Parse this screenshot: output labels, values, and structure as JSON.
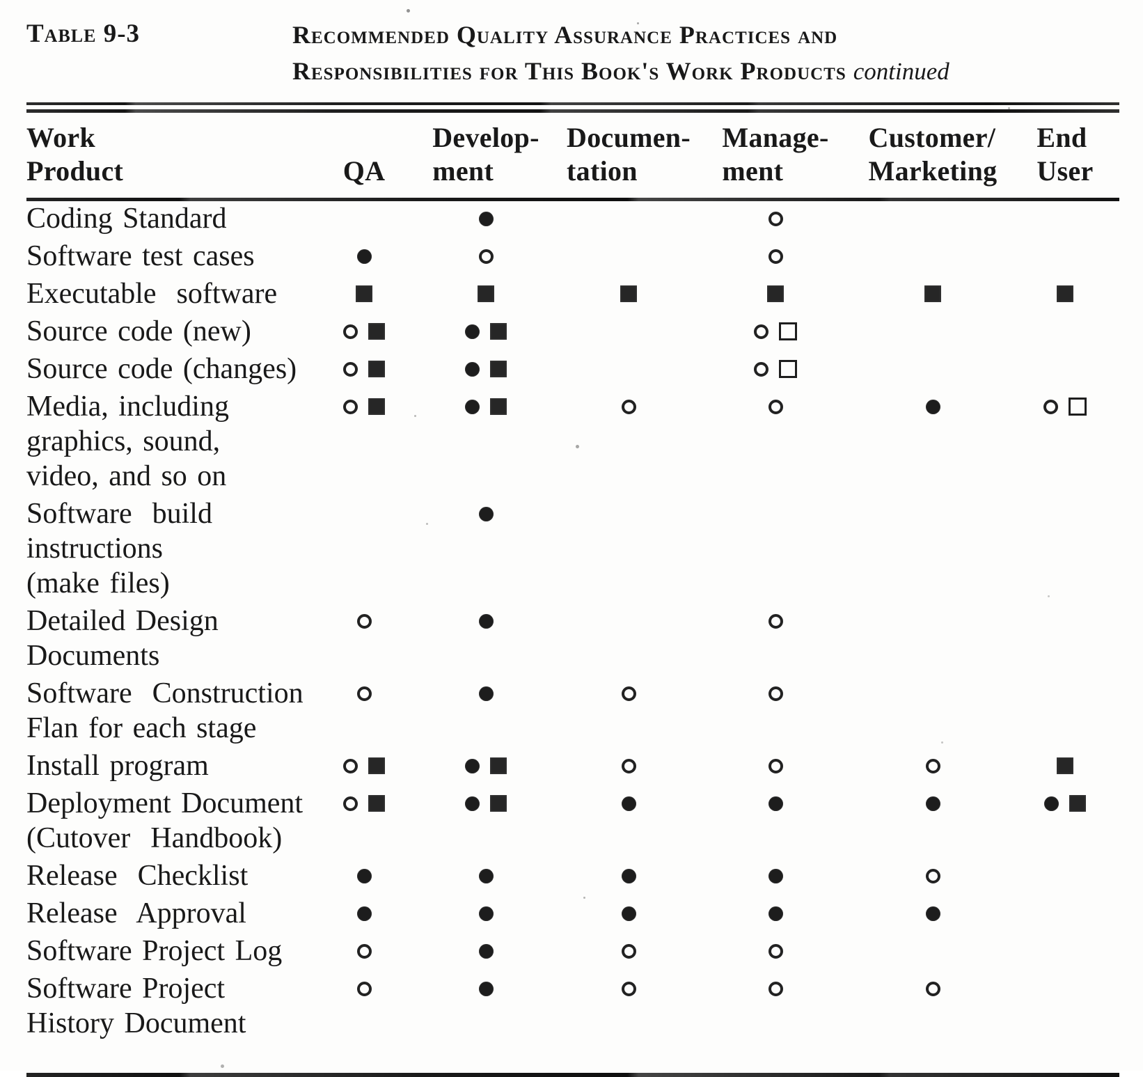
{
  "title": {
    "label": "Table 9-3",
    "heading_line1": "Recommended Quality Assurance Practices and",
    "heading_line2": "Responsibilities for This Book's Work Products",
    "continued": "continued"
  },
  "colors": {
    "ink": "#191919",
    "paper": "#fdfdfc"
  },
  "symbols": {
    "filled-circle": "●",
    "open-circle": "○",
    "filled-square": "■",
    "open-square": "□"
  },
  "table": {
    "columns": [
      {
        "key": "product",
        "line1": "Work",
        "line2": "Product"
      },
      {
        "key": "qa",
        "line1": "",
        "line2": "QA"
      },
      {
        "key": "development",
        "line1": "Develop-",
        "line2": "ment"
      },
      {
        "key": "documentation",
        "line1": "Documen-",
        "line2": "tation"
      },
      {
        "key": "management",
        "line1": "Manage-",
        "line2": "ment"
      },
      {
        "key": "customer_marketing",
        "line1": "Customer/",
        "line2": "Marketing"
      },
      {
        "key": "end_user",
        "line1": "End",
        "line2": "User"
      }
    ],
    "rows": [
      {
        "label_lines": [
          "Coding Standard"
        ],
        "cells": {
          "development": [
            "filled-circle"
          ],
          "management": [
            "open-circle"
          ]
        }
      },
      {
        "label_lines": [
          "Software test cases"
        ],
        "cells": {
          "qa": [
            "filled-circle"
          ],
          "development": [
            "open-circle"
          ],
          "management": [
            "open-circle"
          ]
        }
      },
      {
        "label_lines": [
          "Executable  software"
        ],
        "cells": {
          "qa": [
            "filled-square"
          ],
          "development": [
            "filled-square"
          ],
          "documentation": [
            "filled-square"
          ],
          "management": [
            "filled-square"
          ],
          "customer_marketing": [
            "filled-square"
          ],
          "end_user": [
            "filled-square"
          ]
        }
      },
      {
        "label_lines": [
          "Source code (new)"
        ],
        "cells": {
          "qa": [
            "open-circle",
            "filled-square"
          ],
          "development": [
            "filled-circle",
            "filled-square"
          ],
          "management": [
            "open-circle",
            "open-square"
          ]
        }
      },
      {
        "label_lines": [
          "Source code (changes)"
        ],
        "cells": {
          "qa": [
            "open-circle",
            "filled-square"
          ],
          "development": [
            "filled-circle",
            "filled-square"
          ],
          "management": [
            "open-circle",
            "open-square"
          ]
        }
      },
      {
        "label_lines": [
          "Media, including",
          "graphics, sound,",
          "video, and so on"
        ],
        "cells": {
          "qa": [
            "open-circle",
            "filled-square"
          ],
          "development": [
            "filled-circle",
            "filled-square"
          ],
          "documentation": [
            "open-circle"
          ],
          "management": [
            "open-circle"
          ],
          "customer_marketing": [
            "filled-circle"
          ],
          "end_user": [
            "open-circle",
            "open-square"
          ]
        }
      },
      {
        "label_lines": [
          "Software  build",
          "instructions",
          "(make files)"
        ],
        "cells": {
          "development": [
            "filled-circle"
          ]
        }
      },
      {
        "label_lines": [
          "Detailed Design",
          "Documents"
        ],
        "cells": {
          "qa": [
            "open-circle"
          ],
          "development": [
            "filled-circle"
          ],
          "management": [
            "open-circle"
          ]
        }
      },
      {
        "label_lines": [
          "Software  Construction",
          "Flan for each stage"
        ],
        "cells": {
          "qa": [
            "open-circle"
          ],
          "development": [
            "filled-circle"
          ],
          "documentation": [
            "open-circle"
          ],
          "management": [
            "open-circle"
          ]
        }
      },
      {
        "label_lines": [
          "Install program"
        ],
        "cells": {
          "qa": [
            "open-circle",
            "filled-square"
          ],
          "development": [
            "filled-circle",
            "filled-square"
          ],
          "documentation": [
            "open-circle"
          ],
          "management": [
            "open-circle"
          ],
          "customer_marketing": [
            "open-circle"
          ],
          "end_user": [
            "filled-square"
          ]
        }
      },
      {
        "label_lines": [
          "Deployment Document",
          "(Cutover  Handbook)"
        ],
        "cells": {
          "qa": [
            "open-circle",
            "filled-square"
          ],
          "development": [
            "filled-circle",
            "filled-square"
          ],
          "documentation": [
            "filled-circle"
          ],
          "management": [
            "filled-circle"
          ],
          "customer_marketing": [
            "filled-circle"
          ],
          "end_user": [
            "filled-circle",
            "filled-square"
          ]
        }
      },
      {
        "label_lines": [
          "Release  Checklist"
        ],
        "cells": {
          "qa": [
            "filled-circle"
          ],
          "development": [
            "filled-circle"
          ],
          "documentation": [
            "filled-circle"
          ],
          "management": [
            "filled-circle"
          ],
          "customer_marketing": [
            "open-circle"
          ]
        }
      },
      {
        "label_lines": [
          "Release  Approval"
        ],
        "cells": {
          "qa": [
            "filled-circle"
          ],
          "development": [
            "filled-circle"
          ],
          "documentation": [
            "filled-circle"
          ],
          "management": [
            "filled-circle"
          ],
          "customer_marketing": [
            "filled-circle"
          ]
        }
      },
      {
        "label_lines": [
          "Software Project Log"
        ],
        "cells": {
          "qa": [
            "open-circle"
          ],
          "development": [
            "filled-circle"
          ],
          "documentation": [
            "open-circle"
          ],
          "management": [
            "open-circle"
          ]
        }
      },
      {
        "label_lines": [
          "Software Project",
          "History Document"
        ],
        "cells": {
          "qa": [
            "open-circle"
          ],
          "development": [
            "filled-circle"
          ],
          "documentation": [
            "open-circle"
          ],
          "management": [
            "open-circle"
          ],
          "customer_marketing": [
            "open-circle"
          ]
        }
      }
    ]
  }
}
